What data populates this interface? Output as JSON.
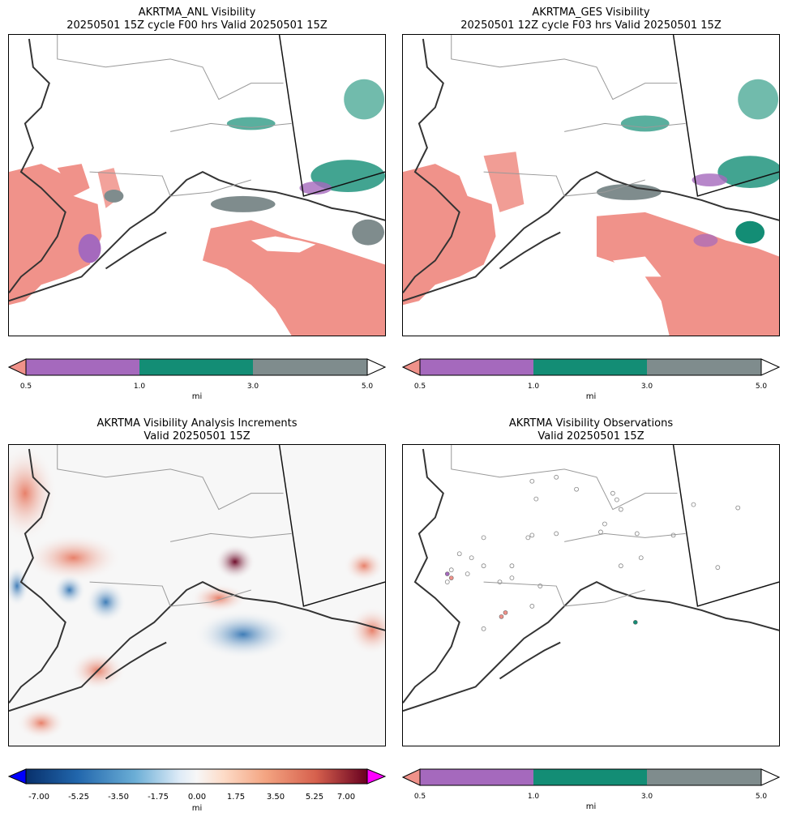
{
  "panels": {
    "anl": {
      "title_line1": "AKRTMA_ANL Visibility",
      "title_line2": "20250501 15Z cycle F00 hrs Valid 20250501 15Z"
    },
    "ges": {
      "title_line1": "AKRTMA_GES Visibility",
      "title_line2": "20250501 12Z cycle F03 hrs Valid 20250501 15Z"
    },
    "inc": {
      "title_line1": "AKRTMA Visibility Analysis Increments",
      "title_line2": "Valid 20250501 15Z"
    },
    "obs": {
      "title_line1": "AKRTMA Visibility Observations",
      "title_line2": "Valid 20250501 15Z"
    }
  },
  "colorbars": {
    "visibility": {
      "ticks": [
        "0.5",
        "1.0",
        "3.0",
        "5.0"
      ],
      "unit": "mi",
      "colors": {
        "under": "#f0928a",
        "c1": "#a569bd",
        "c2": "#138d75",
        "c3": "#7f8c8d",
        "over": "#ffffff"
      }
    },
    "increments": {
      "ticks": [
        "-7.00",
        "-5.25",
        "-3.50",
        "-1.75",
        "0.00",
        "1.75",
        "3.50",
        "5.25",
        "7.00"
      ],
      "unit": "mi",
      "colors": {
        "under": "#0000ff",
        "over": "#ff00ff",
        "neg": "#08306b",
        "zero": "#f7f7f7",
        "pos": "#67001f"
      }
    }
  },
  "colors": {
    "salmon": "#f0928a",
    "purple": "#a569bd",
    "teal": "#138d75",
    "gray": "#7f8c8d"
  }
}
